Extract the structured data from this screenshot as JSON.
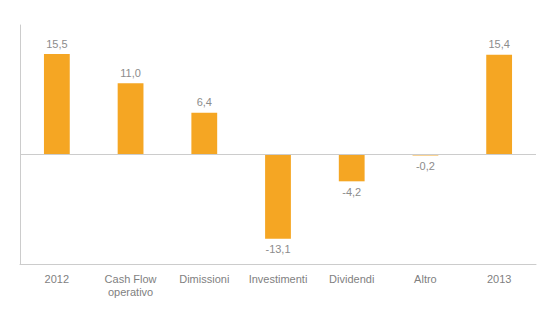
{
  "chart_data": {
    "type": "bar",
    "categories": [
      "2012",
      "Cash Flow\noperativo",
      "Dimissioni",
      "Investimenti",
      "Dividendi",
      "Altro",
      "2013"
    ],
    "values": [
      15.5,
      11.0,
      6.4,
      -13.1,
      -4.2,
      -0.2,
      15.4
    ],
    "value_labels": [
      "15,5",
      "11,0",
      "6,4",
      "-13,1",
      "-4,2",
      "-0,2",
      "15,4"
    ],
    "data_labels": true,
    "color": "#F5A623",
    "ylim": [
      -17,
      20
    ],
    "yticks": [],
    "tick_labels": "x",
    "grid": false
  }
}
